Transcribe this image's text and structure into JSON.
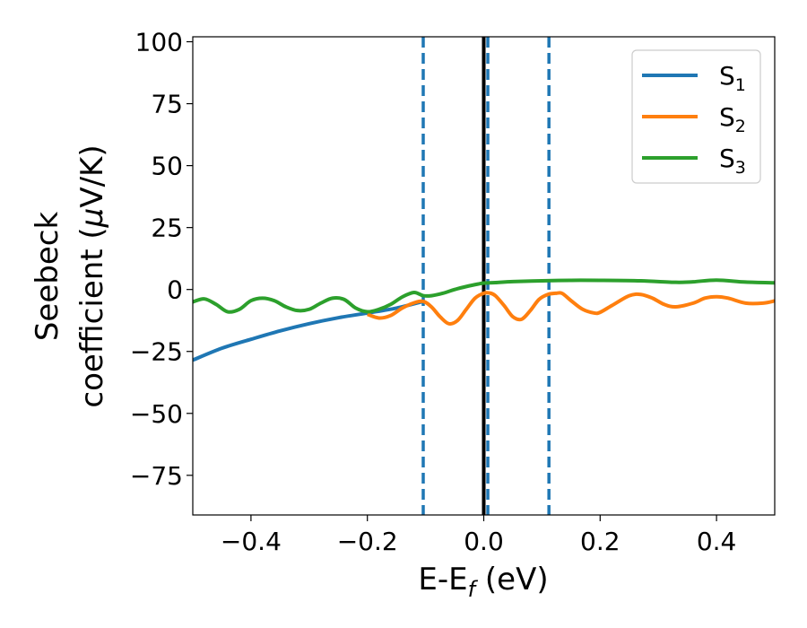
{
  "chart_data": {
    "type": "line",
    "xlabel": {
      "main": "E-E",
      "sub": "f",
      "unit": " (eV)"
    },
    "ylabel": {
      "line1": "Seebeck",
      "line2": "coefficient  (",
      "mu": "μ",
      "line2_end": "V/K)"
    },
    "xlim": [
      -0.5,
      0.5
    ],
    "ylim": [
      -91,
      102
    ],
    "xticks": [
      -0.4,
      -0.2,
      0.0,
      0.2,
      0.4
    ],
    "xtick_labels": [
      "−0.4",
      "−0.2",
      "0.0",
      "0.2",
      "0.4"
    ],
    "yticks": [
      -75,
      -50,
      -25,
      0,
      25,
      50,
      75,
      100
    ],
    "ytick_labels": [
      "−75",
      "−50",
      "−25",
      "0",
      "25",
      "50",
      "75",
      "100"
    ],
    "grid": false,
    "legend_position": "top-right",
    "vlines": [
      {
        "x": -0.104,
        "style": "dashed",
        "color": "#1f77b4"
      },
      {
        "x": 0.0,
        "style": "solid",
        "color": "#000000"
      },
      {
        "x": 0.007,
        "style": "dashed",
        "color": "#1f77b4"
      },
      {
        "x": 0.112,
        "style": "dashed",
        "color": "#1f77b4"
      }
    ],
    "series": [
      {
        "name": "S",
        "sub": "1",
        "color": "#1f77b4",
        "x": [
          -0.5,
          -0.45,
          -0.4,
          -0.35,
          -0.3,
          -0.25,
          -0.2,
          -0.15,
          -0.104
        ],
        "y": [
          -28.5,
          -23.7,
          -20.1,
          -16.7,
          -13.8,
          -11.4,
          -9.5,
          -7.5,
          -4.8
        ]
      },
      {
        "name": "S",
        "sub": "2",
        "color": "#ff7f0e",
        "x": [
          -0.2,
          -0.18,
          -0.16,
          -0.14,
          -0.12,
          -0.104,
          -0.09,
          -0.075,
          -0.06,
          -0.045,
          -0.03,
          -0.015,
          0.0,
          0.01,
          0.02,
          0.035,
          0.05,
          0.065,
          0.08,
          0.095,
          0.11,
          0.125,
          0.135,
          0.15,
          0.17,
          0.19,
          0.2,
          0.22,
          0.25,
          0.27,
          0.29,
          0.31,
          0.33,
          0.36,
          0.38,
          0.4,
          0.42,
          0.45,
          0.48,
          0.5
        ],
        "y": [
          -10.0,
          -11.5,
          -10.5,
          -7.5,
          -5.4,
          -4.8,
          -7.0,
          -11.0,
          -13.8,
          -12.5,
          -8.0,
          -3.5,
          -1.5,
          -1.4,
          -2.5,
          -6.5,
          -11.0,
          -12.0,
          -8.5,
          -4.0,
          -2.0,
          -1.5,
          -1.6,
          -4.5,
          -8.0,
          -9.5,
          -9.2,
          -6.5,
          -2.5,
          -2.0,
          -3.5,
          -6.0,
          -7.0,
          -5.5,
          -3.5,
          -2.9,
          -3.5,
          -5.5,
          -5.5,
          -4.6
        ]
      },
      {
        "name": "S",
        "sub": "3",
        "color": "#2ca02c",
        "x": [
          -0.5,
          -0.48,
          -0.46,
          -0.44,
          -0.42,
          -0.4,
          -0.38,
          -0.36,
          -0.34,
          -0.32,
          -0.3,
          -0.28,
          -0.26,
          -0.24,
          -0.22,
          -0.2,
          -0.18,
          -0.16,
          -0.14,
          -0.12,
          -0.104,
          -0.09,
          -0.07,
          -0.05,
          -0.03,
          -0.01,
          0.0,
          0.02,
          0.05,
          0.1,
          0.15,
          0.2,
          0.27,
          0.33,
          0.36,
          0.4,
          0.45,
          0.5
        ],
        "y": [
          -5.0,
          -3.8,
          -6.0,
          -9.0,
          -8.0,
          -4.5,
          -3.5,
          -4.5,
          -7.0,
          -8.5,
          -8.0,
          -5.5,
          -3.5,
          -4.0,
          -7.5,
          -9.0,
          -8.0,
          -6.0,
          -3.0,
          -1.2,
          -2.5,
          -2.5,
          -1.5,
          0.0,
          1.2,
          2.2,
          2.6,
          2.8,
          3.2,
          3.5,
          3.7,
          3.7,
          3.5,
          2.9,
          3.1,
          3.8,
          3.0,
          2.7
        ]
      }
    ]
  }
}
